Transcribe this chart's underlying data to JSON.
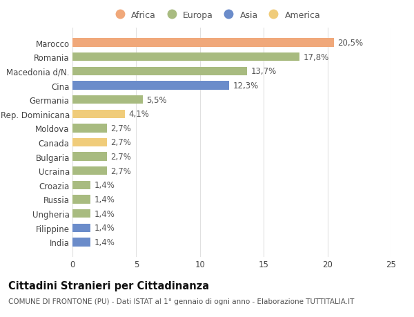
{
  "countries": [
    "India",
    "Filippine",
    "Ungheria",
    "Russia",
    "Croazia",
    "Ucraina",
    "Bulgaria",
    "Canada",
    "Moldova",
    "Rep. Dominicana",
    "Germania",
    "Cina",
    "Macedonia d/N.",
    "Romania",
    "Marocco"
  ],
  "values": [
    1.4,
    1.4,
    1.4,
    1.4,
    1.4,
    2.7,
    2.7,
    2.7,
    2.7,
    4.1,
    5.5,
    12.3,
    13.7,
    17.8,
    20.5
  ],
  "labels": [
    "1,4%",
    "1,4%",
    "1,4%",
    "1,4%",
    "1,4%",
    "2,7%",
    "2,7%",
    "2,7%",
    "2,7%",
    "4,1%",
    "5,5%",
    "12,3%",
    "13,7%",
    "17,8%",
    "20,5%"
  ],
  "colors": [
    "#6b8cca",
    "#6b8cca",
    "#a8bb80",
    "#a8bb80",
    "#a8bb80",
    "#a8bb80",
    "#a8bb80",
    "#f0cc7a",
    "#a8bb80",
    "#f0cc7a",
    "#a8bb80",
    "#6b8cca",
    "#a8bb80",
    "#a8bb80",
    "#f0a87a"
  ],
  "continent_colors": {
    "Africa": "#f0a87a",
    "Europa": "#a8bb80",
    "Asia": "#6b8cca",
    "America": "#f0cc7a"
  },
  "xlim": [
    0,
    25
  ],
  "xticks": [
    0,
    5,
    10,
    15,
    20,
    25
  ],
  "title": "Cittadini Stranieri per Cittadinanza",
  "subtitle": "COMUNE DI FRONTONE (PU) - Dati ISTAT al 1° gennaio di ogni anno - Elaborazione TUTTITALIA.IT",
  "background_color": "#ffffff",
  "bar_height": 0.6,
  "label_fontsize": 8.5,
  "tick_fontsize": 8.5,
  "title_fontsize": 10.5,
  "subtitle_fontsize": 7.5
}
